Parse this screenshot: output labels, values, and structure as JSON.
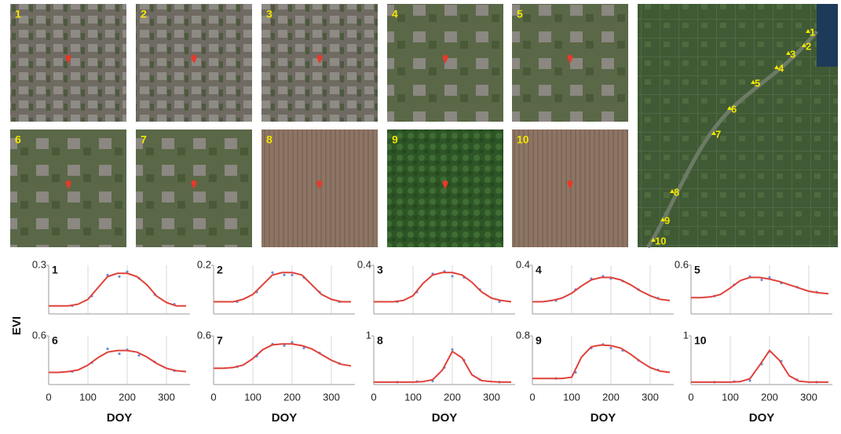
{
  "images": [
    {
      "label": "1"
    },
    {
      "label": "2"
    },
    {
      "label": "3"
    },
    {
      "label": "4"
    },
    {
      "label": "5"
    },
    {
      "label": "6"
    },
    {
      "label": "7"
    },
    {
      "label": "8"
    },
    {
      "label": "9"
    },
    {
      "label": "10"
    }
  ],
  "map": {
    "labels": [
      "1",
      "2",
      "3",
      "4",
      "5",
      "6",
      "7",
      "8",
      "9",
      "10"
    ]
  },
  "y_label": "EVI",
  "chart_data": [
    {
      "type": "line",
      "title": "1",
      "xlim": [
        0,
        360
      ],
      "ylim": [
        0,
        0.3
      ],
      "yticks": [
        0.3
      ],
      "xticks": [
        0,
        100,
        200,
        300
      ],
      "series": [
        {
          "color": "#e0413a",
          "x": [
            0,
            25,
            50,
            75,
            100,
            125,
            150,
            175,
            200,
            225,
            250,
            275,
            300,
            325,
            350
          ],
          "values": [
            0.05,
            0.05,
            0.05,
            0.06,
            0.09,
            0.16,
            0.23,
            0.25,
            0.25,
            0.23,
            0.18,
            0.11,
            0.07,
            0.05,
            0.05
          ]
        },
        {
          "color": "#6a8fe0",
          "x": [
            60,
            110,
            150,
            180,
            200,
            230,
            270,
            320
          ],
          "values": [
            0.05,
            0.11,
            0.24,
            0.23,
            0.26,
            0.22,
            0.12,
            0.06
          ]
        }
      ]
    },
    {
      "type": "line",
      "title": "2",
      "xlim": [
        0,
        360
      ],
      "ylim": [
        0,
        0.2
      ],
      "yticks": [
        0.2
      ],
      "xticks": [
        0,
        100,
        200,
        300
      ],
      "series": [
        {
          "color": "#e0413a",
          "x": [
            0,
            25,
            50,
            75,
            100,
            125,
            150,
            175,
            200,
            225,
            250,
            275,
            300,
            325,
            350
          ],
          "values": [
            0.05,
            0.05,
            0.05,
            0.06,
            0.08,
            0.12,
            0.16,
            0.17,
            0.17,
            0.16,
            0.12,
            0.08,
            0.06,
            0.05,
            0.05
          ]
        },
        {
          "color": "#6a8fe0",
          "x": [
            60,
            110,
            150,
            180,
            200,
            230,
            270,
            320
          ],
          "values": [
            0.05,
            0.09,
            0.17,
            0.16,
            0.16,
            0.15,
            0.09,
            0.05
          ]
        }
      ]
    },
    {
      "type": "line",
      "title": "3",
      "xlim": [
        0,
        360
      ],
      "ylim": [
        0,
        0.4
      ],
      "yticks": [
        0.4
      ],
      "xticks": [
        0,
        100,
        200,
        300
      ],
      "series": [
        {
          "color": "#e0413a",
          "x": [
            0,
            25,
            50,
            75,
            100,
            125,
            150,
            175,
            200,
            225,
            250,
            275,
            300,
            325,
            350
          ],
          "values": [
            0.1,
            0.1,
            0.1,
            0.11,
            0.15,
            0.25,
            0.32,
            0.34,
            0.34,
            0.32,
            0.26,
            0.18,
            0.13,
            0.11,
            0.1
          ]
        },
        {
          "color": "#6a8fe0",
          "x": [
            60,
            110,
            150,
            180,
            200,
            230,
            270,
            320
          ],
          "values": [
            0.1,
            0.18,
            0.33,
            0.35,
            0.31,
            0.3,
            0.2,
            0.1
          ]
        }
      ]
    },
    {
      "type": "line",
      "title": "4",
      "xlim": [
        0,
        360
      ],
      "ylim": [
        0,
        0.4
      ],
      "yticks": [
        0.4
      ],
      "xticks": [
        0,
        100,
        200,
        300
      ],
      "series": [
        {
          "color": "#e0413a",
          "x": [
            0,
            25,
            50,
            75,
            100,
            125,
            150,
            175,
            200,
            225,
            250,
            275,
            300,
            325,
            350
          ],
          "values": [
            0.1,
            0.1,
            0.11,
            0.13,
            0.17,
            0.23,
            0.28,
            0.3,
            0.3,
            0.28,
            0.24,
            0.19,
            0.15,
            0.12,
            0.11
          ]
        },
        {
          "color": "#6a8fe0",
          "x": [
            60,
            110,
            150,
            180,
            200,
            230,
            270,
            320
          ],
          "values": [
            0.11,
            0.2,
            0.29,
            0.31,
            0.29,
            0.27,
            0.2,
            0.13
          ]
        }
      ]
    },
    {
      "type": "line",
      "title": "5",
      "xlim": [
        0,
        360
      ],
      "ylim": [
        0,
        0.6
      ],
      "yticks": [
        0.6
      ],
      "xticks": [
        0,
        100,
        200,
        300
      ],
      "series": [
        {
          "color": "#e0413a",
          "x": [
            0,
            25,
            50,
            75,
            100,
            125,
            150,
            175,
            200,
            225,
            250,
            275,
            300,
            325,
            350
          ],
          "values": [
            0.2,
            0.2,
            0.21,
            0.24,
            0.32,
            0.41,
            0.45,
            0.45,
            0.43,
            0.4,
            0.36,
            0.32,
            0.28,
            0.26,
            0.25
          ]
        },
        {
          "color": "#6a8fe0",
          "x": [
            60,
            110,
            150,
            180,
            200,
            230,
            270,
            320
          ],
          "values": [
            0.22,
            0.36,
            0.46,
            0.42,
            0.45,
            0.38,
            0.33,
            0.27
          ]
        }
      ]
    },
    {
      "type": "line",
      "title": "6",
      "xlim": [
        0,
        360
      ],
      "ylim": [
        0,
        0.6
      ],
      "yticks": [
        0.6
      ],
      "xticks": [
        0,
        100,
        200,
        300
      ],
      "x_label": "DOY",
      "series": [
        {
          "color": "#e0413a",
          "x": [
            0,
            25,
            50,
            75,
            100,
            125,
            150,
            175,
            200,
            225,
            250,
            275,
            300,
            325,
            350
          ],
          "values": [
            0.15,
            0.15,
            0.16,
            0.18,
            0.24,
            0.33,
            0.4,
            0.42,
            0.42,
            0.4,
            0.34,
            0.26,
            0.2,
            0.17,
            0.16
          ]
        },
        {
          "color": "#6a8fe0",
          "x": [
            60,
            110,
            150,
            180,
            200,
            230,
            270,
            320
          ],
          "values": [
            0.16,
            0.27,
            0.44,
            0.38,
            0.43,
            0.36,
            0.28,
            0.17
          ]
        }
      ]
    },
    {
      "type": "line",
      "title": "7",
      "xlim": [
        0,
        360
      ],
      "ylim": [
        0,
        0.6
      ],
      "yticks": [
        0.6
      ],
      "xticks": [
        0,
        100,
        200,
        300
      ],
      "x_label": "DOY",
      "series": [
        {
          "color": "#e0413a",
          "x": [
            0,
            25,
            50,
            75,
            100,
            125,
            150,
            175,
            200,
            225,
            250,
            275,
            300,
            325,
            350
          ],
          "values": [
            0.2,
            0.2,
            0.21,
            0.24,
            0.32,
            0.43,
            0.49,
            0.5,
            0.5,
            0.48,
            0.44,
            0.37,
            0.3,
            0.25,
            0.23
          ]
        },
        {
          "color": "#6a8fe0",
          "x": [
            60,
            110,
            150,
            180,
            200,
            230,
            270,
            320
          ],
          "values": [
            0.22,
            0.35,
            0.5,
            0.48,
            0.52,
            0.45,
            0.39,
            0.26
          ]
        }
      ]
    },
    {
      "type": "line",
      "title": "8",
      "xlim": [
        0,
        360
      ],
      "ylim": [
        0,
        1
      ],
      "yticks": [
        1
      ],
      "xticks": [
        0,
        100,
        200,
        300
      ],
      "x_label": "DOY",
      "series": [
        {
          "color": "#e0413a",
          "x": [
            0,
            25,
            50,
            75,
            100,
            125,
            150,
            175,
            200,
            225,
            250,
            275,
            300,
            325,
            350
          ],
          "values": [
            0.05,
            0.05,
            0.05,
            0.05,
            0.05,
            0.06,
            0.1,
            0.3,
            0.68,
            0.55,
            0.2,
            0.08,
            0.06,
            0.05,
            0.05
          ]
        },
        {
          "color": "#6a8fe0",
          "x": [
            60,
            110,
            150,
            180,
            200,
            230,
            270,
            320
          ],
          "values": [
            0.05,
            0.06,
            0.07,
            0.35,
            0.72,
            0.5,
            0.1,
            0.05
          ]
        }
      ]
    },
    {
      "type": "line",
      "title": "9",
      "xlim": [
        0,
        360
      ],
      "ylim": [
        0,
        0.8
      ],
      "yticks": [
        0.8
      ],
      "xticks": [
        0,
        100,
        200,
        300
      ],
      "x_label": "DOY",
      "series": [
        {
          "color": "#e0413a",
          "x": [
            0,
            25,
            50,
            75,
            100,
            125,
            150,
            175,
            200,
            225,
            250,
            275,
            300,
            325,
            350
          ],
          "values": [
            0.1,
            0.1,
            0.1,
            0.1,
            0.12,
            0.45,
            0.62,
            0.65,
            0.64,
            0.6,
            0.5,
            0.38,
            0.28,
            0.22,
            0.2
          ]
        },
        {
          "color": "#6a8fe0",
          "x": [
            60,
            110,
            150,
            180,
            200,
            230,
            270,
            320
          ],
          "values": [
            0.1,
            0.2,
            0.6,
            0.66,
            0.6,
            0.56,
            0.4,
            0.24
          ]
        }
      ]
    },
    {
      "type": "line",
      "title": "10",
      "xlim": [
        0,
        360
      ],
      "ylim": [
        0,
        1
      ],
      "yticks": [
        1
      ],
      "xticks": [
        0,
        100,
        200,
        300
      ],
      "x_label": "DOY",
      "series": [
        {
          "color": "#e0413a",
          "x": [
            0,
            25,
            50,
            75,
            100,
            125,
            150,
            175,
            200,
            225,
            250,
            275,
            300,
            325,
            350
          ],
          "values": [
            0.05,
            0.05,
            0.05,
            0.05,
            0.05,
            0.06,
            0.12,
            0.4,
            0.7,
            0.5,
            0.18,
            0.07,
            0.05,
            0.05,
            0.05
          ]
        },
        {
          "color": "#6a8fe0",
          "x": [
            60,
            110,
            150,
            180,
            200,
            230,
            270,
            320
          ],
          "values": [
            0.05,
            0.06,
            0.08,
            0.42,
            0.68,
            0.48,
            0.1,
            0.05
          ]
        }
      ]
    }
  ]
}
